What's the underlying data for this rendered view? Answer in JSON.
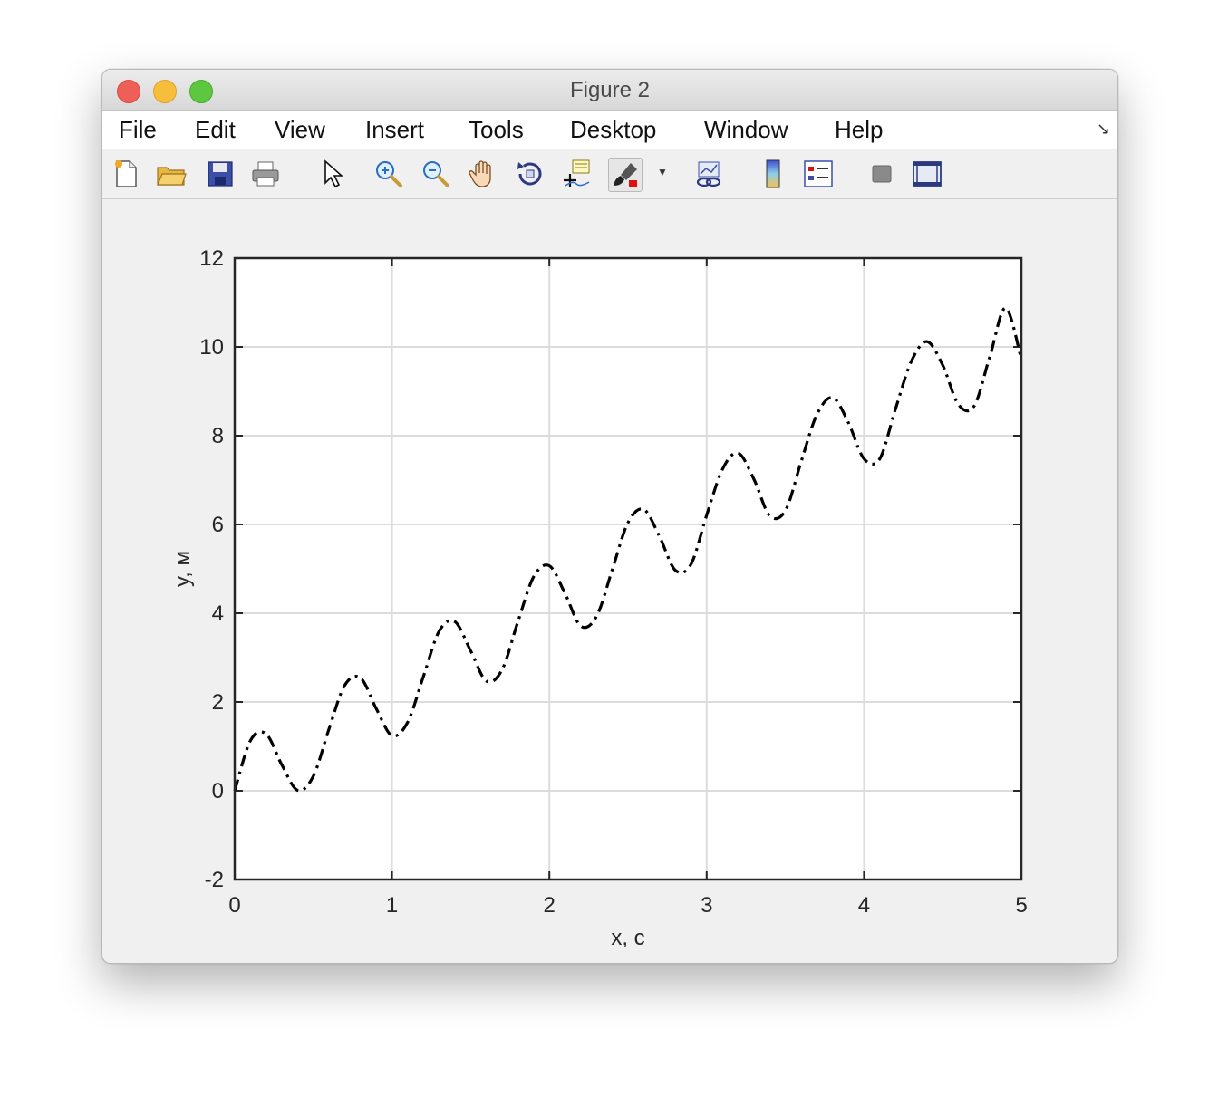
{
  "window": {
    "title": "Figure 2"
  },
  "menu": [
    "File",
    "Edit",
    "View",
    "Insert",
    "Tools",
    "Desktop",
    "Window",
    "Help"
  ],
  "toolbar": {
    "buttons": [
      "new-figure-icon",
      "open-file-icon",
      "save-icon",
      "print-icon",
      "pointer-icon",
      "zoom-in-icon",
      "zoom-out-icon",
      "pan-hand-icon",
      "rotate-3d-icon",
      "data-cursor-icon",
      "brush-icon",
      "link-plot-icon",
      "colorbar-icon",
      "legend-icon",
      "hide-tools-icon",
      "show-tools-icon"
    ]
  },
  "colors": {
    "line": "#000000",
    "grid": "#dcdcdc",
    "axes_bg": "#ffffff",
    "figure_bg": "#f0f0f0"
  },
  "chart_data": {
    "type": "line",
    "title": "",
    "xlabel": "x, c",
    "ylabel": "y, м",
    "xlim": [
      0,
      5
    ],
    "ylim": [
      -2,
      12
    ],
    "xticks": [
      "0",
      "1",
      "2",
      "3",
      "4",
      "5"
    ],
    "yticks": [
      "-2",
      "0",
      "2",
      "4",
      "6",
      "8",
      "10",
      "12"
    ],
    "grid": true,
    "line_style": "dash-dot",
    "series": [
      {
        "x": [
          0,
          0.1,
          0.2,
          0.3,
          0.4,
          0.5,
          0.6,
          0.7,
          0.8,
          0.9,
          1.0,
          1.1,
          1.2,
          1.3,
          1.4,
          1.5,
          1.6,
          1.7,
          1.8,
          1.9,
          2.0,
          2.1,
          2.2,
          2.3,
          2.4,
          2.5,
          2.6,
          2.7,
          2.8,
          2.9,
          3.0,
          3.1,
          3.2,
          3.3,
          3.4,
          3.5,
          3.6,
          3.7,
          3.8,
          3.9,
          4.0,
          4.1,
          4.2,
          4.3,
          4.4,
          4.5,
          4.6,
          4.7,
          4.8,
          4.9,
          5.0
        ],
        "y": [
          0.0,
          1.13,
          1.28,
          0.58,
          0.01,
          0.33,
          1.4,
          2.38,
          2.54,
          1.85,
          1.24,
          1.55,
          2.58,
          3.6,
          3.81,
          3.15,
          2.47,
          2.73,
          3.81,
          4.82,
          5.07,
          4.44,
          3.71,
          3.93,
          4.98,
          6.04,
          6.34,
          5.73,
          4.97,
          5.1,
          6.21,
          7.24,
          7.61,
          7.02,
          6.2,
          6.31,
          7.41,
          8.47,
          8.86,
          8.3,
          7.48,
          7.48,
          8.6,
          9.67,
          10.12,
          9.59,
          8.7,
          8.67,
          9.79,
          10.88,
          9.72
        ]
      }
    ]
  }
}
